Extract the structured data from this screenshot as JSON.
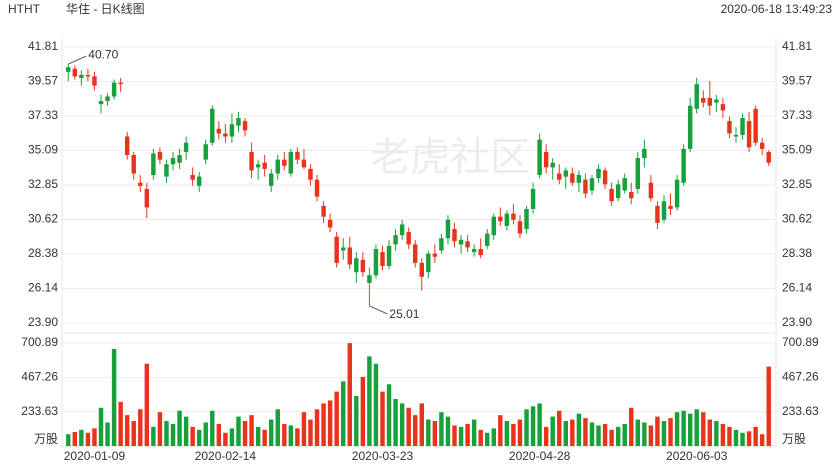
{
  "chart_data": {
    "type": "candlestick",
    "symbol": "HTHT",
    "title": "华住 - 日K线图",
    "timestamp": "2020-06-18 13:49:23",
    "watermark": "老虎社区",
    "up_color": "#18a03c",
    "down_color": "#e8341c",
    "ylim": [
      23.9,
      41.81
    ],
    "yticks": [
      41.81,
      39.57,
      37.33,
      35.09,
      32.85,
      30.62,
      28.38,
      26.14,
      {
        "value": 23.9,
        "label": "23.90"
      }
    ],
    "volume_ylim": [
      0,
      700.89
    ],
    "volume_yticks": [
      700.89,
      467.26,
      233.63
    ],
    "volume_unit": "万股",
    "max_label": "40.70",
    "min_label": "25.01",
    "grid": true,
    "categories": [
      null,
      null,
      null,
      null,
      "2020-01-09",
      null,
      null,
      null,
      null,
      null,
      null,
      null,
      null,
      null,
      null,
      null,
      null,
      null,
      null,
      null,
      null,
      null,
      null,
      null,
      "2020-02-14",
      null,
      null,
      null,
      null,
      null,
      null,
      null,
      null,
      null,
      null,
      null,
      null,
      null,
      null,
      null,
      null,
      null,
      null,
      null,
      null,
      null,
      null,
      null,
      "2020-03-23",
      null,
      null,
      null,
      null,
      null,
      null,
      null,
      null,
      null,
      null,
      null,
      null,
      null,
      null,
      null,
      null,
      null,
      null,
      null,
      null,
      null,
      null,
      null,
      "2020-04-28",
      null,
      null,
      null,
      null,
      null,
      null,
      null,
      null,
      null,
      null,
      null,
      null,
      null,
      null,
      null,
      null,
      null,
      null,
      null,
      null,
      null,
      null,
      null,
      "2020-06-03",
      null,
      null,
      null,
      null,
      null,
      null,
      null,
      null,
      null,
      null,
      null
    ],
    "candles": [
      [
        40.2,
        40.7,
        39.6,
        40.5
      ],
      [
        40.4,
        40.6,
        39.7,
        39.9
      ],
      [
        39.8,
        40.3,
        39.3,
        40.0
      ],
      [
        40.0,
        40.4,
        39.6,
        39.9
      ],
      [
        39.9,
        40.2,
        39.0,
        39.3
      ],
      [
        38.1,
        38.7,
        37.5,
        38.3
      ],
      [
        38.3,
        38.8,
        38.0,
        38.6
      ],
      [
        38.6,
        39.7,
        38.4,
        39.5
      ],
      [
        39.5,
        39.8,
        38.9,
        39.4
      ],
      [
        36.0,
        36.3,
        34.5,
        34.8
      ],
      [
        34.8,
        35.0,
        33.2,
        33.6
      ],
      [
        33.0,
        33.5,
        32.4,
        32.8
      ],
      [
        32.6,
        33.0,
        30.7,
        31.4
      ],
      [
        33.5,
        35.2,
        33.2,
        34.9
      ],
      [
        35.0,
        35.3,
        34.2,
        34.5
      ],
      [
        33.4,
        34.5,
        33.0,
        34.2
      ],
      [
        34.2,
        35.0,
        33.8,
        34.6
      ],
      [
        34.3,
        35.2,
        33.9,
        34.8
      ],
      [
        35.0,
        36.0,
        34.5,
        35.6
      ],
      [
        33.5,
        34.0,
        32.8,
        33.2
      ],
      [
        32.8,
        33.7,
        32.4,
        33.4
      ],
      [
        34.5,
        35.8,
        34.2,
        35.5
      ],
      [
        35.6,
        38.0,
        35.4,
        37.8
      ],
      [
        36.5,
        37.0,
        35.8,
        36.2
      ],
      [
        36.2,
        36.8,
        35.6,
        36.0
      ],
      [
        36.0,
        37.5,
        35.6,
        36.8
      ],
      [
        36.7,
        37.6,
        36.3,
        37.2
      ],
      [
        37.0,
        37.2,
        36.0,
        36.4
      ],
      [
        35.0,
        35.6,
        33.3,
        33.8
      ],
      [
        34.0,
        34.5,
        33.2,
        34.2
      ],
      [
        34.3,
        34.8,
        33.4,
        33.9
      ],
      [
        32.8,
        33.9,
        32.4,
        33.6
      ],
      [
        33.6,
        34.8,
        33.2,
        34.5
      ],
      [
        34.5,
        35.0,
        33.8,
        34.1
      ],
      [
        33.6,
        35.2,
        33.4,
        35.0
      ],
      [
        35.0,
        35.3,
        34.2,
        34.5
      ],
      [
        34.5,
        35.2,
        33.9,
        34.0
      ],
      [
        33.9,
        34.2,
        32.8,
        33.2
      ],
      [
        33.2,
        33.5,
        31.8,
        32.1
      ],
      [
        31.5,
        31.8,
        30.4,
        30.8
      ],
      [
        30.6,
        31.0,
        29.8,
        30.1
      ],
      [
        29.5,
        29.8,
        27.5,
        27.8
      ],
      [
        28.6,
        29.4,
        28.0,
        28.8
      ],
      [
        28.8,
        29.5,
        27.4,
        27.7
      ],
      [
        27.2,
        28.5,
        26.5,
        28.1
      ],
      [
        28.0,
        28.5,
        26.9,
        27.2
      ],
      [
        26.5,
        27.5,
        25.01,
        27.0
      ],
      [
        27.0,
        29.0,
        26.8,
        28.7
      ],
      [
        28.5,
        28.9,
        27.3,
        27.6
      ],
      [
        27.6,
        29.3,
        27.4,
        28.9
      ],
      [
        29.0,
        30.0,
        28.6,
        29.6
      ],
      [
        29.6,
        30.6,
        29.3,
        30.3
      ],
      [
        29.8,
        30.1,
        28.7,
        29.0
      ],
      [
        29.0,
        29.3,
        27.5,
        27.8
      ],
      [
        27.8,
        28.1,
        26.0,
        26.9
      ],
      [
        27.2,
        28.6,
        26.8,
        28.4
      ],
      [
        28.4,
        29.0,
        27.8,
        28.2
      ],
      [
        28.6,
        29.7,
        28.4,
        29.4
      ],
      [
        29.4,
        30.9,
        29.0,
        30.6
      ],
      [
        30.0,
        30.4,
        28.8,
        29.2
      ],
      [
        29.0,
        29.6,
        28.4,
        29.3
      ],
      [
        29.2,
        29.6,
        28.5,
        28.8
      ],
      [
        28.5,
        29.0,
        28.2,
        28.7
      ],
      [
        28.7,
        29.4,
        28.1,
        28.3
      ],
      [
        28.9,
        30.0,
        28.7,
        29.7
      ],
      [
        29.6,
        31.0,
        29.3,
        30.8
      ],
      [
        30.8,
        31.4,
        30.2,
        30.5
      ],
      [
        30.2,
        31.2,
        29.9,
        31.0
      ],
      [
        31.0,
        31.6,
        30.3,
        30.6
      ],
      [
        30.5,
        30.9,
        29.4,
        29.7
      ],
      [
        30.0,
        31.5,
        29.7,
        31.3
      ],
      [
        31.3,
        33.0,
        31.0,
        32.6
      ],
      [
        33.5,
        36.2,
        33.3,
        35.8
      ],
      [
        35.0,
        35.5,
        33.6,
        34.0
      ],
      [
        34.0,
        34.6,
        33.2,
        34.3
      ],
      [
        33.6,
        34.2,
        32.9,
        33.2
      ],
      [
        33.4,
        34.0,
        32.6,
        33.8
      ],
      [
        33.6,
        34.0,
        32.8,
        33.0
      ],
      [
        33.0,
        33.8,
        32.4,
        33.5
      ],
      [
        33.2,
        33.6,
        32.0,
        32.3
      ],
      [
        32.5,
        33.5,
        32.2,
        33.3
      ],
      [
        33.3,
        34.2,
        33.0,
        33.9
      ],
      [
        33.8,
        34.0,
        32.6,
        32.9
      ],
      [
        32.6,
        33.0,
        31.5,
        31.8
      ],
      [
        32.0,
        33.2,
        31.8,
        32.9
      ],
      [
        32.5,
        33.6,
        32.3,
        33.3
      ],
      [
        32.4,
        33.0,
        31.6,
        32.0
      ],
      [
        32.6,
        35.0,
        32.3,
        34.6
      ],
      [
        34.6,
        35.8,
        34.0,
        35.2
      ],
      [
        33.0,
        33.5,
        31.8,
        32.0
      ],
      [
        31.5,
        31.8,
        30.0,
        30.4
      ],
      [
        30.6,
        32.2,
        30.4,
        31.8
      ],
      [
        31.5,
        32.3,
        30.9,
        31.3
      ],
      [
        31.4,
        33.5,
        31.2,
        33.2
      ],
      [
        33.0,
        35.5,
        32.8,
        35.2
      ],
      [
        35.2,
        38.5,
        35.0,
        38.0
      ],
      [
        37.8,
        39.8,
        37.5,
        39.4
      ],
      [
        38.5,
        39.0,
        37.9,
        38.2
      ],
      [
        38.5,
        39.6,
        37.4,
        38.0
      ],
      [
        38.2,
        38.7,
        37.6,
        38.4
      ],
      [
        38.1,
        38.5,
        37.2,
        37.7
      ],
      [
        37.0,
        37.3,
        35.9,
        36.2
      ],
      [
        36.0,
        36.6,
        35.6,
        36.1
      ],
      [
        36.1,
        37.5,
        35.8,
        37.2
      ],
      [
        37.0,
        37.6,
        35.0,
        35.3
      ],
      [
        37.8,
        38.0,
        35.4,
        35.6
      ],
      [
        35.6,
        35.9,
        34.8,
        35.2
      ],
      [
        35.0,
        35.1,
        34.1,
        34.3
      ]
    ],
    "volumes": [
      80,
      95,
      110,
      90,
      120,
      260,
      160,
      660,
      300,
      210,
      170,
      250,
      560,
      130,
      230,
      170,
      150,
      240,
      200,
      130,
      110,
      160,
      240,
      150,
      90,
      120,
      200,
      170,
      210,
      130,
      110,
      180,
      250,
      150,
      140,
      120,
      230,
      180,
      250,
      290,
      310,
      370,
      440,
      700,
      340,
      470,
      610,
      560,
      370,
      420,
      320,
      290,
      260,
      210,
      290,
      180,
      170,
      230,
      200,
      140,
      130,
      150,
      180,
      110,
      90,
      120,
      210,
      170,
      150,
      180,
      250,
      270,
      290,
      130,
      200,
      240,
      170,
      180,
      220,
      190,
      160,
      140,
      150,
      110,
      130,
      150,
      260,
      180,
      160,
      140,
      200,
      170,
      190,
      230,
      240,
      220,
      250,
      230,
      180,
      170,
      150,
      130,
      110,
      90,
      100,
      130,
      80,
      540
    ]
  }
}
